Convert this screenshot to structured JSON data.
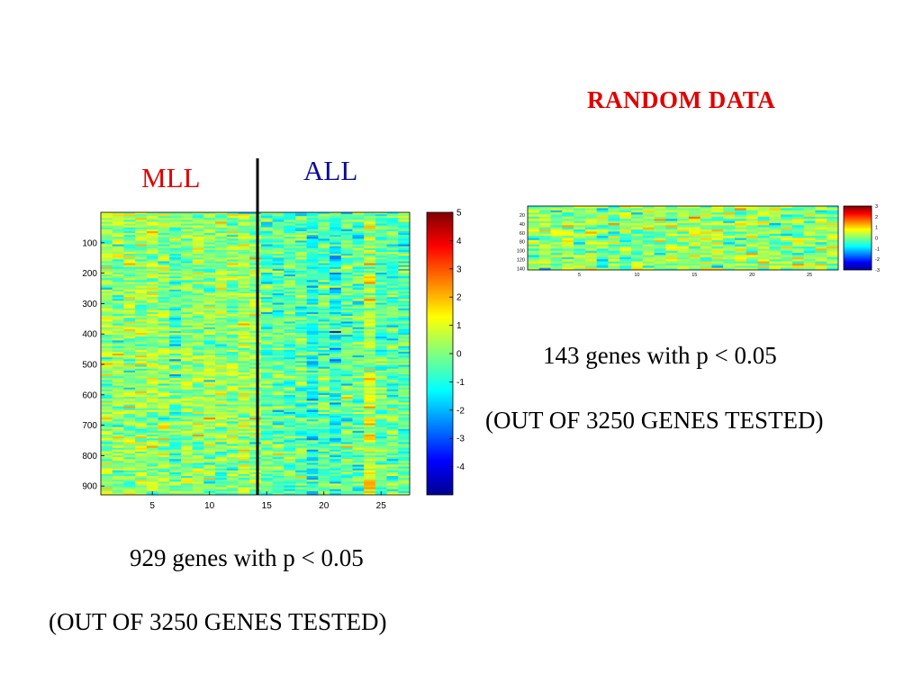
{
  "slide": {
    "random_title": "RANDOM  DATA",
    "mll_label": "MLL",
    "all_label": "ALL",
    "left_caption_line1": "929 genes with p < 0.05",
    "left_caption_line2": "(OUT OF 3250 GENES TESTED)",
    "right_caption_line1": "143 genes with p < 0.05",
    "right_caption_line2": "(OUT OF 3250 GENES TESTED)"
  },
  "chart_data": [
    {
      "type": "heatmap",
      "title": "",
      "group_labels": [
        "MLL",
        "ALL"
      ],
      "group_split_after_column": 14,
      "columns": 27,
      "rows": 929,
      "xticks": [
        "5",
        "10",
        "15",
        "20",
        "25"
      ],
      "yticks": [
        "100",
        "200",
        "300",
        "400",
        "500",
        "600",
        "700",
        "800",
        "900"
      ],
      "colorbar": {
        "range": [
          -5,
          5
        ],
        "ticks": [
          "5",
          "4",
          "3",
          "2",
          "1",
          "0",
          "-1",
          "-2",
          "-3",
          "-4"
        ]
      },
      "colormap": [
        "#00008f",
        "#0000ff",
        "#0080ff",
        "#00ffff",
        "#80ff80",
        "#ffff00",
        "#ff8000",
        "#ff0000",
        "#800000"
      ],
      "caption": "929 genes with p < 0.05 (OUT OF 3250 GENES TESTED)"
    },
    {
      "type": "heatmap",
      "title": "RANDOM  DATA",
      "columns": 27,
      "rows": 143,
      "xticks": [
        "5",
        "10",
        "15",
        "20",
        "25"
      ],
      "yticks": [
        "20",
        "40",
        "60",
        "80",
        "100",
        "120",
        "140"
      ],
      "colorbar": {
        "range": [
          -3,
          3
        ],
        "ticks": [
          "3",
          "2",
          "1",
          "0",
          "-1",
          "-2",
          "-3"
        ]
      },
      "caption": "143 genes with p < 0.05 (OUT OF 3250 GENES TESTED)"
    }
  ]
}
